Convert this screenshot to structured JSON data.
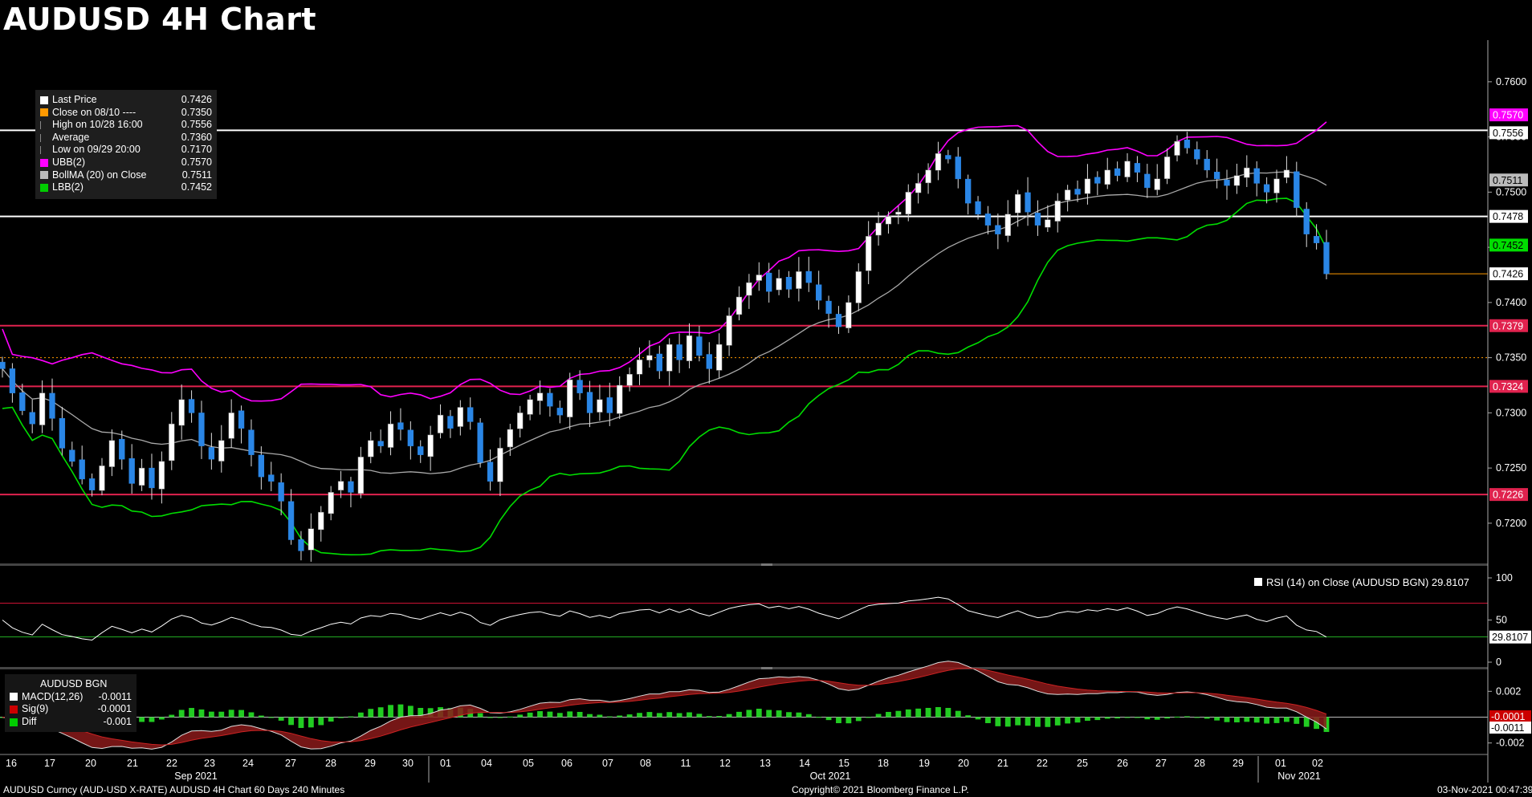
{
  "title": "AUDUSD 4H Chart",
  "legend": {
    "items": [
      {
        "label": "Last Price",
        "value": "0.7426",
        "color": "#ffffff"
      },
      {
        "label": "Close on 08/10 ----",
        "value": "0.7350",
        "color": "#ff9900"
      },
      {
        "label": "High on 10/28 16:00",
        "value": "0.7556",
        "color": ""
      },
      {
        "label": "Average",
        "value": "0.7360",
        "color": ""
      },
      {
        "label": "Low on 09/29 20:00",
        "value": "0.7170",
        "color": ""
      },
      {
        "label": "UBB(2)",
        "value": "0.7570",
        "color": "#ff00ff"
      },
      {
        "label": "BollMA (20)  on Close",
        "value": "0.7511",
        "color": "#bbbbbb"
      },
      {
        "label": "LBB(2)",
        "value": "0.7452",
        "color": "#00cc00"
      }
    ]
  },
  "rsi_legend": {
    "label": "RSI (14)  on Close (AUDUSD BGN)",
    "value": "29.8107"
  },
  "macd_legend": {
    "title": "AUDUSD BGN",
    "items": [
      {
        "label": "MACD(12,26)",
        "value": "-0.0011",
        "color": "#ffffff"
      },
      {
        "label": "Sig(9)",
        "value": "-0.0001",
        "color": "#cc0000"
      },
      {
        "label": "Diff",
        "value": "-0.001",
        "color": "#00cc00"
      }
    ]
  },
  "footer": {
    "left": "AUDUSD Curncy (AUD-USD X-RATE) AUDUSD 4H Chart 60 Days 240 Minutes",
    "center": "Copyright© 2021 Bloomberg Finance L.P.",
    "right": "03-Nov-2021 00:47:39"
  },
  "colors": {
    "up": "#ffffff",
    "down": "#2a86e6",
    "ubb": "#ff00ff",
    "lbb": "#00dd00",
    "ma": "#aaaaaa",
    "support": "#e0224e",
    "resistance": "#ffffff"
  },
  "chart_data": [
    {
      "type": "candlestick",
      "title": "AUDUSD 4H Chart",
      "x": [
        "16",
        "17",
        "20",
        "21",
        "22",
        "23",
        "24",
        "27",
        "28",
        "29",
        "30",
        "01",
        "04",
        "05",
        "06",
        "07",
        "08",
        "11",
        "12",
        "13",
        "14",
        "15",
        "18",
        "19",
        "20",
        "21",
        "22",
        "25",
        "26",
        "27",
        "28",
        "29",
        "01",
        "02"
      ],
      "months": [
        "Sep 2021",
        "Oct 2021",
        "Nov 2021"
      ],
      "ylim": [
        0.7165,
        0.7645
      ],
      "yticks": [
        "0.7600",
        "0.7550",
        "0.7500",
        "0.7450",
        "0.7400",
        "0.7350",
        "0.7300",
        "0.7250",
        "0.7200"
      ],
      "close_series": [
        0.734,
        0.7318,
        0.7302,
        0.729,
        0.7318,
        0.7295,
        0.7268,
        0.7256,
        0.724,
        0.723,
        0.7252,
        0.7275,
        0.7258,
        0.7236,
        0.725,
        0.7232,
        0.7256,
        0.729,
        0.7312,
        0.73,
        0.727,
        0.7258,
        0.7275,
        0.73,
        0.7286,
        0.7262,
        0.7242,
        0.7238,
        0.722,
        0.7185,
        0.7175,
        0.7195,
        0.721,
        0.7228,
        0.7238,
        0.7228,
        0.726,
        0.7275,
        0.727,
        0.729,
        0.7285,
        0.727,
        0.7262,
        0.728,
        0.7298,
        0.7286,
        0.7305,
        0.7292,
        0.7255,
        0.7238,
        0.7268,
        0.7285,
        0.73,
        0.7312,
        0.7318,
        0.7306,
        0.7298,
        0.733,
        0.7318,
        0.73,
        0.7312,
        0.73,
        0.7325,
        0.7335,
        0.7348,
        0.7352,
        0.7338,
        0.7362,
        0.7348,
        0.737,
        0.7352,
        0.734,
        0.7362,
        0.7388,
        0.7405,
        0.7418,
        0.7425,
        0.741,
        0.7422,
        0.7412,
        0.7428,
        0.7418,
        0.7402,
        0.739,
        0.7378,
        0.74,
        0.7428,
        0.746,
        0.7472,
        0.7478,
        0.7482,
        0.75,
        0.7508,
        0.752,
        0.7535,
        0.753,
        0.7512,
        0.749,
        0.748,
        0.747,
        0.7462,
        0.748,
        0.7498,
        0.7482,
        0.747,
        0.7475,
        0.7492,
        0.7502,
        0.7498,
        0.7512,
        0.7508,
        0.752,
        0.7515,
        0.7528,
        0.7518,
        0.7504,
        0.7512,
        0.7532,
        0.7546,
        0.754,
        0.753,
        0.752,
        0.7512,
        0.7506,
        0.7515,
        0.7522,
        0.7508,
        0.75,
        0.7512,
        0.752,
        0.7486,
        0.7462,
        0.7454,
        0.7426
      ],
      "annotations": [
        {
          "label": "0.7570",
          "kind": "UBB(2)"
        },
        {
          "label": "0.7556",
          "kind": "High on 10/28 16:00"
        },
        {
          "label": "0.7511",
          "kind": "BollMA (20)"
        },
        {
          "label": "0.7478",
          "kind": "horizontal line"
        },
        {
          "label": "0.7452",
          "kind": "LBB(2)"
        },
        {
          "label": "0.7426",
          "kind": "Last Price"
        },
        {
          "label": "0.7379",
          "kind": "horizontal line"
        },
        {
          "label": "0.7324",
          "kind": "horizontal line"
        },
        {
          "label": "0.7226",
          "kind": "horizontal line"
        }
      ],
      "hlines": [
        0.7556,
        0.7478,
        0.7379,
        0.7324,
        0.7226
      ],
      "close_on_0810": 0.735
    },
    {
      "type": "line",
      "name": "RSI (14)",
      "yticks": [
        "100",
        "50",
        "0"
      ],
      "levels": [
        70,
        30
      ],
      "last": "29.8107"
    },
    {
      "type": "bar",
      "name": "MACD",
      "yticks": [
        "0.002",
        "-0.002"
      ],
      "tags": [
        "-0.0001",
        "-0.0011"
      ]
    }
  ]
}
